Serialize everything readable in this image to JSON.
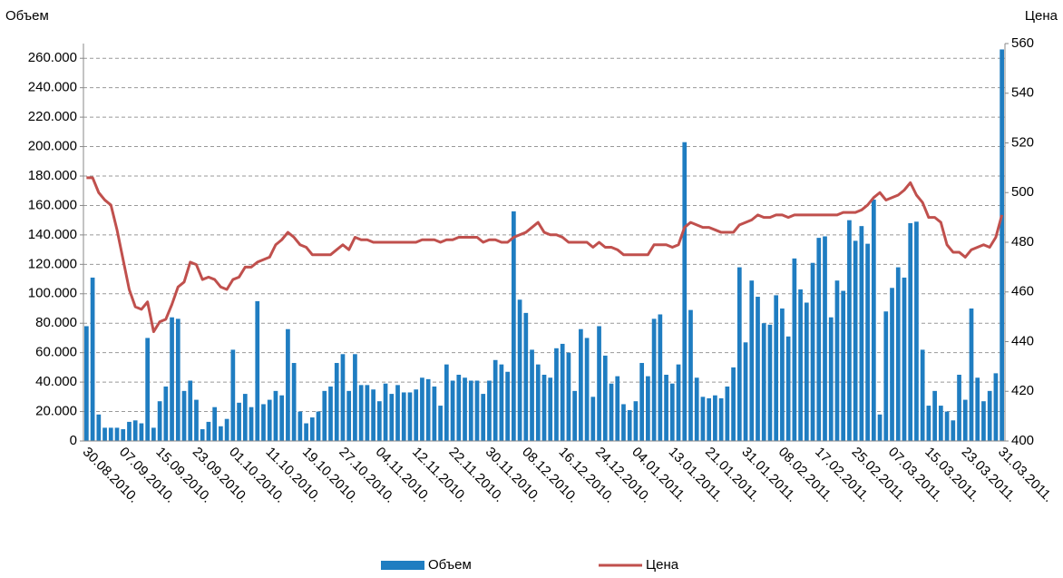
{
  "chart_data": {
    "type": "bar",
    "y_title": "Объем",
    "y2_title": "Цена",
    "categories": [
      "30.08.2010.",
      null,
      null,
      null,
      null,
      null,
      "07.09.2010.",
      null,
      null,
      null,
      null,
      null,
      "15.09.2010.",
      null,
      null,
      null,
      null,
      null,
      "23.09.2010.",
      null,
      null,
      null,
      null,
      null,
      "01.10.2010.",
      null,
      null,
      null,
      null,
      null,
      "11.10.2010.",
      null,
      null,
      null,
      null,
      null,
      "19.10.2010.",
      null,
      null,
      null,
      null,
      null,
      "27.10.2010.",
      null,
      null,
      null,
      null,
      null,
      "04.11.2010.",
      null,
      null,
      null,
      null,
      null,
      "12.11.2010.",
      null,
      null,
      null,
      null,
      null,
      "22.11.2010.",
      null,
      null,
      null,
      null,
      null,
      "30.11.2010.",
      null,
      null,
      null,
      null,
      null,
      "08.12.2010.",
      null,
      null,
      null,
      null,
      null,
      "16.12.2010.",
      null,
      null,
      null,
      null,
      null,
      "24.12.2010.",
      null,
      null,
      null,
      null,
      null,
      "04.01.2011.",
      null,
      null,
      null,
      null,
      null,
      "13.01.2011.",
      null,
      null,
      null,
      null,
      null,
      "21.01.2011.",
      null,
      null,
      null,
      null,
      null,
      "31.01.2011.",
      null,
      null,
      null,
      null,
      null,
      "08.02.2011.",
      null,
      null,
      null,
      null,
      null,
      "17.02.2011.",
      null,
      null,
      null,
      null,
      null,
      "25.02.2011.",
      null,
      null,
      null,
      null,
      null,
      "07.03.2011.",
      null,
      null,
      null,
      null,
      null,
      "15.03.2011.",
      null,
      null,
      null,
      null,
      null,
      "23.03.2011.",
      null,
      null,
      null,
      null,
      null,
      "31.03.2011."
    ],
    "series": [
      {
        "name": "Объем",
        "type": "bar",
        "color": "#1f7dc1",
        "values": [
          78000,
          111000,
          18000,
          9000,
          9000,
          9000,
          8000,
          13000,
          14000,
          12000,
          70000,
          9000,
          27000,
          37000,
          84000,
          83000,
          34000,
          41000,
          28000,
          8000,
          13000,
          23000,
          10000,
          15000,
          62000,
          26000,
          32000,
          23000,
          95000,
          25000,
          28000,
          34000,
          31000,
          76000,
          53000,
          20000,
          12000,
          16000,
          20000,
          34000,
          37000,
          53000,
          59000,
          34000,
          59000,
          38000,
          38000,
          35000,
          27000,
          39000,
          32000,
          38000,
          33000,
          33000,
          35000,
          43000,
          42000,
          37000,
          24000,
          52000,
          41000,
          45000,
          43000,
          41000,
          41000,
          32000,
          41000,
          55000,
          52000,
          47000,
          156000,
          96000,
          87000,
          62000,
          52000,
          45000,
          43000,
          63000,
          66000,
          60000,
          34000,
          76000,
          70000,
          30000,
          78000,
          58000,
          39000,
          44000,
          25000,
          21000,
          27000,
          53000,
          44000,
          83000,
          86000,
          45000,
          39000,
          52000,
          203000,
          89000,
          43000,
          30000,
          29000,
          31000,
          29000,
          37000,
          50000,
          118000,
          67000,
          109000,
          98000,
          80000,
          79000,
          99000,
          90000,
          71000,
          124000,
          103000,
          94000,
          121000,
          138000,
          139000,
          84000,
          109000,
          102000,
          150000,
          136000,
          146000,
          134000,
          164000,
          18000,
          88000,
          104000,
          118000,
          111000,
          148000,
          149000,
          62000,
          24000,
          34000,
          24000,
          20000,
          14000,
          45000,
          28000,
          90000,
          43000,
          27000,
          34000,
          46000,
          266000
        ]
      },
      {
        "name": "Цена",
        "type": "line",
        "axis": "y2",
        "color": "#c0504d",
        "values": [
          506,
          506,
          500,
          497,
          495,
          485,
          473,
          461,
          454,
          453,
          456,
          444,
          448,
          449,
          455,
          462,
          464,
          472,
          471,
          465,
          466,
          465,
          462,
          461,
          465,
          466,
          470,
          470,
          472,
          473,
          474,
          479,
          481,
          484,
          482,
          479,
          478,
          475,
          475,
          475,
          475,
          477,
          479,
          477,
          482,
          481,
          481,
          480,
          480,
          480,
          480,
          480,
          480,
          480,
          480,
          481,
          481,
          481,
          480,
          481,
          481,
          482,
          482,
          482,
          482,
          480,
          481,
          481,
          480,
          480,
          482,
          483,
          484,
          486,
          488,
          484,
          483,
          483,
          482,
          480,
          480,
          480,
          480,
          478,
          480,
          478,
          478,
          477,
          475,
          475,
          475,
          475,
          475,
          479,
          479,
          479,
          478,
          479,
          486,
          488,
          487,
          486,
          486,
          485,
          484,
          484,
          484,
          487,
          488,
          489,
          491,
          490,
          490,
          491,
          491,
          490,
          491,
          491,
          491,
          491,
          491,
          491,
          491,
          491,
          492,
          492,
          492,
          493,
          495,
          498,
          500,
          497,
          498,
          499,
          501,
          504,
          499,
          496,
          490,
          490,
          488,
          479,
          476,
          476,
          474,
          477,
          478,
          479,
          478,
          482,
          491
        ]
      }
    ],
    "ylim": [
      0,
      270000
    ],
    "yticks": [
      0,
      {
        "value": 20000,
        "label": "20.000"
      },
      {
        "value": 40000,
        "label": "40.000"
      },
      {
        "value": 60000,
        "label": "60.000"
      },
      {
        "value": 80000,
        "label": "80.000"
      },
      {
        "value": 100000,
        "label": "100.000"
      },
      {
        "value": 120000,
        "label": "120.000"
      },
      {
        "value": 140000,
        "label": "140.000"
      },
      {
        "value": 160000,
        "label": "160.000"
      },
      {
        "value": 180000,
        "label": "180.000"
      },
      {
        "value": 200000,
        "label": "200.000"
      },
      {
        "value": 220000,
        "label": "220.000"
      },
      {
        "value": 240000,
        "label": "240.000"
      },
      {
        "value": 260000,
        "label": "260.000"
      }
    ],
    "y2lim": [
      400,
      560
    ],
    "y2ticks": [
      400,
      420,
      440,
      460,
      480,
      500,
      520,
      540,
      560
    ],
    "grid": true,
    "legend": "bottom"
  }
}
